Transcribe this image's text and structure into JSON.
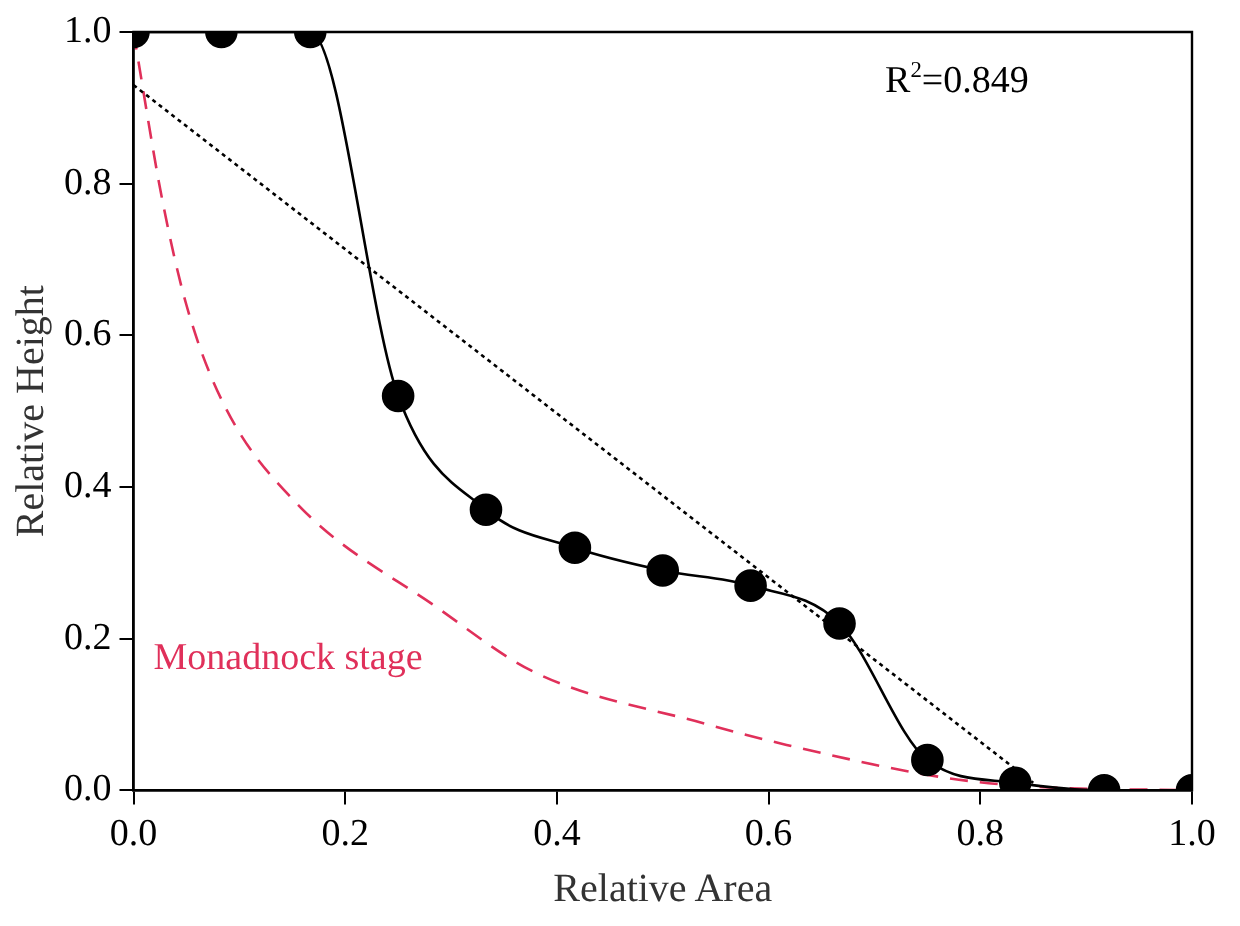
{
  "chart_data": {
    "type": "line",
    "xlabel": "Relative Area",
    "ylabel": "Relative Height",
    "xlim": [
      0,
      1
    ],
    "ylim": [
      0,
      1
    ],
    "xticks": [
      {
        "value": 0,
        "label": "0.0"
      },
      {
        "value": 0.2,
        "label": "0.2"
      },
      {
        "value": 0.4,
        "label": "0.4"
      },
      {
        "value": 0.6,
        "label": "0.6"
      },
      {
        "value": 0.8,
        "label": "0.8"
      },
      {
        "value": 1,
        "label": "1.0"
      }
    ],
    "yticks": [
      {
        "value": 0,
        "label": "0.0"
      },
      {
        "value": 0.2,
        "label": "0.2"
      },
      {
        "value": 0.4,
        "label": "0.4"
      },
      {
        "value": 0.6,
        "label": "0.6"
      },
      {
        "value": 0.8,
        "label": "0.8"
      },
      {
        "value": 1,
        "label": "1.0"
      }
    ],
    "grid": false,
    "legend": false,
    "annotations": [
      "R$^{2}$=0.849"
    ],
    "series": [
      {
        "color": "#000000",
        "marker": "circle",
        "line_style": "solid",
        "x": [
          0,
          0.083,
          0.167,
          0.25,
          0.333,
          0.417,
          0.5,
          0.583,
          0.667,
          0.75,
          0.833,
          0.917,
          1
        ],
        "values": [
          1,
          1,
          1,
          0.52,
          0.37,
          0.32,
          0.29,
          0.27,
          0.22,
          0.04,
          0.01,
          0,
          0
        ]
      },
      {
        "color": "#000000",
        "marker": "none",
        "line_style": "dotted",
        "x": [
          0,
          0.85
        ],
        "values": [
          0.93,
          0.01
        ]
      },
      {
        "name": "Monadnock stage",
        "color": "#e0305a",
        "marker": "none",
        "line_style": "dashed",
        "x": [
          0,
          0.027,
          0.05,
          0.085,
          0.153,
          0.288,
          0.38,
          0.54,
          0.617,
          0.77,
          0.85,
          1
        ],
        "values": [
          1,
          0.78,
          0.64,
          0.51,
          0.38,
          0.24,
          0.155,
          0.088,
          0.06,
          0.016,
          0.005,
          0
        ]
      }
    ]
  }
}
